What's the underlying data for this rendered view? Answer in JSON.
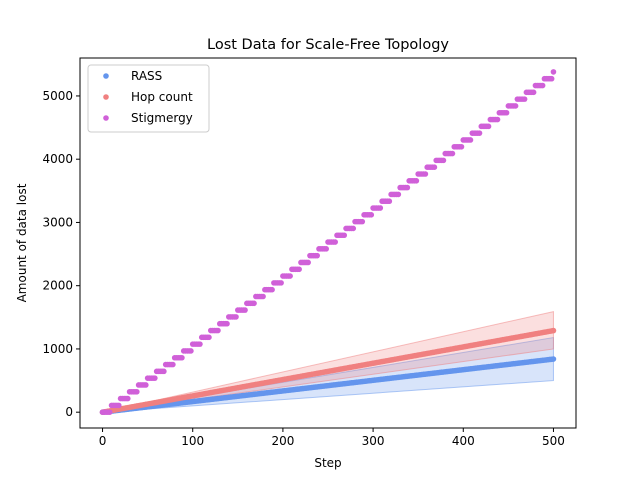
{
  "chart_data": {
    "type": "scatter",
    "title": "Lost Data for Scale-Free Topology",
    "xlabel": "Step",
    "ylabel": "Amount of data lost",
    "xlim": [
      -25,
      525
    ],
    "ylim": [
      -250,
      5600
    ],
    "x_ticks": [
      0,
      100,
      200,
      300,
      400,
      500
    ],
    "y_ticks": [
      0,
      1000,
      2000,
      3000,
      4000,
      5000
    ],
    "x_tick_labels": [
      "0",
      "100",
      "200",
      "300",
      "400",
      "500"
    ],
    "y_tick_labels": [
      "0",
      "1000",
      "2000",
      "3000",
      "4000",
      "5000"
    ],
    "grid": false,
    "legend_position": "top-left",
    "series": [
      {
        "name": "RASS",
        "color": "#6495ed",
        "x_end": 500,
        "y_end": 840,
        "band_lower_end": 500,
        "band_upper_end": 1180
      },
      {
        "name": "Hop count",
        "color": "#f08080",
        "x_end": 500,
        "y_end": 1290,
        "band_lower_end": 1000,
        "band_upper_end": 1590
      },
      {
        "name": "Stigmergy",
        "color": "#d060d8",
        "x_end": 500,
        "y_end": 5380,
        "step_interval": 10
      }
    ]
  }
}
